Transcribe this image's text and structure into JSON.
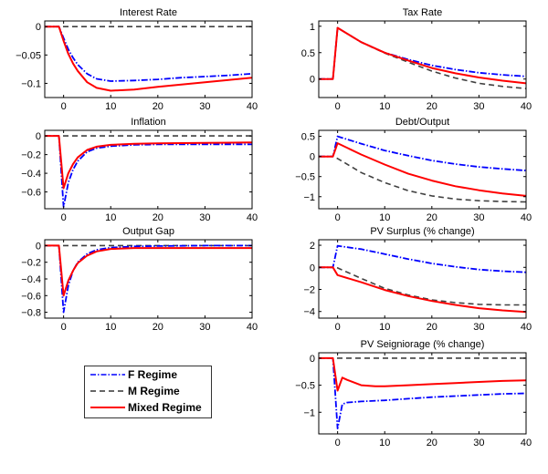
{
  "legend": [
    {
      "name": "F Regime",
      "color": "#0000ff",
      "style": "dashdot"
    },
    {
      "name": "M Regime",
      "color": "#333333",
      "style": "dashed"
    },
    {
      "name": "Mixed Regime",
      "color": "#ff0000",
      "style": "solid"
    }
  ],
  "chart_data": [
    {
      "type": "line",
      "title": "Interest Rate",
      "xlim": [
        -4,
        40
      ],
      "ylim": [
        -0.125,
        0.01
      ],
      "xticks": [
        0,
        10,
        20,
        30,
        40
      ],
      "yticks": [
        0,
        -0.05,
        -0.1
      ],
      "ytick_labels": [
        "0",
        "-0.05",
        "-0.1"
      ],
      "series": [
        {
          "name": "F Regime",
          "x": [
            -4,
            -1,
            0,
            1,
            2,
            3,
            5,
            7,
            10,
            15,
            20,
            25,
            30,
            35,
            40
          ],
          "y": [
            0,
            0,
            -0.02,
            -0.04,
            -0.055,
            -0.067,
            -0.083,
            -0.092,
            -0.096,
            -0.095,
            -0.093,
            -0.09,
            -0.088,
            -0.086,
            -0.083
          ]
        },
        {
          "name": "M Regime",
          "x": [
            -4,
            40
          ],
          "y": [
            0,
            0
          ]
        },
        {
          "name": "Mixed Regime",
          "x": [
            -4,
            -1,
            0,
            1,
            2,
            3,
            5,
            7,
            10,
            15,
            20,
            25,
            30,
            35,
            40
          ],
          "y": [
            0,
            0,
            -0.025,
            -0.048,
            -0.065,
            -0.078,
            -0.098,
            -0.108,
            -0.113,
            -0.111,
            -0.106,
            -0.102,
            -0.098,
            -0.094,
            -0.09
          ]
        }
      ]
    },
    {
      "type": "line",
      "title": "Tax Rate",
      "xlim": [
        -4,
        40
      ],
      "ylim": [
        -0.35,
        1.1
      ],
      "xticks": [
        0,
        10,
        20,
        30,
        40
      ],
      "yticks": [
        1,
        0.5,
        0
      ],
      "ytick_labels": [
        "1",
        "0.5",
        "0"
      ],
      "series": [
        {
          "name": "F Regime",
          "x": [
            -4,
            -1,
            0,
            5,
            10,
            15,
            20,
            25,
            30,
            35,
            40
          ],
          "y": [
            0,
            0,
            0.97,
            0.7,
            0.5,
            0.37,
            0.26,
            0.18,
            0.12,
            0.08,
            0.05
          ]
        },
        {
          "name": "M Regime",
          "x": [
            -4,
            -1,
            0,
            5,
            10,
            15,
            20,
            25,
            30,
            35,
            40
          ],
          "y": [
            0,
            0,
            0.97,
            0.7,
            0.49,
            0.32,
            0.15,
            0.02,
            -0.08,
            -0.14,
            -0.18
          ]
        },
        {
          "name": "Mixed Regime",
          "x": [
            -4,
            -1,
            0,
            5,
            10,
            15,
            20,
            25,
            30,
            35,
            40
          ],
          "y": [
            0,
            0,
            0.97,
            0.7,
            0.5,
            0.35,
            0.21,
            0.11,
            0.03,
            -0.03,
            -0.08
          ]
        }
      ]
    },
    {
      "type": "line",
      "title": "Inflation",
      "xlim": [
        -4,
        40
      ],
      "ylim": [
        -0.78,
        0.06
      ],
      "xticks": [
        0,
        10,
        20,
        30,
        40
      ],
      "yticks": [
        0,
        -0.2,
        -0.4,
        -0.6
      ],
      "ytick_labels": [
        "0",
        "-0.2",
        "-0.4",
        "-0.6"
      ],
      "series": [
        {
          "name": "F Regime",
          "x": [
            -4,
            -1,
            0,
            1,
            2,
            3,
            5,
            7,
            10,
            15,
            20,
            30,
            40
          ],
          "y": [
            0,
            0,
            -0.76,
            -0.5,
            -0.36,
            -0.27,
            -0.17,
            -0.13,
            -0.11,
            -0.095,
            -0.09,
            -0.09,
            -0.09
          ]
        },
        {
          "name": "M Regime",
          "x": [
            -4,
            40
          ],
          "y": [
            0,
            0
          ]
        },
        {
          "name": "Mixed Regime",
          "x": [
            -4,
            -1,
            0,
            1,
            2,
            3,
            5,
            7,
            10,
            15,
            20,
            30,
            40
          ],
          "y": [
            0,
            0,
            -0.56,
            -0.4,
            -0.3,
            -0.23,
            -0.15,
            -0.115,
            -0.095,
            -0.085,
            -0.08,
            -0.075,
            -0.07
          ]
        }
      ]
    },
    {
      "type": "line",
      "title": "Debt/Output",
      "xlim": [
        -4,
        40
      ],
      "ylim": [
        -1.3,
        0.65
      ],
      "xticks": [
        0,
        10,
        20,
        30,
        40
      ],
      "yticks": [
        0.5,
        0,
        -0.5,
        -1
      ],
      "ytick_labels": [
        "0.5",
        "0",
        "-0.5",
        "-1"
      ],
      "series": [
        {
          "name": "F Regime",
          "x": [
            -4,
            -1,
            0,
            5,
            10,
            15,
            20,
            25,
            30,
            35,
            40
          ],
          "y": [
            0,
            0,
            0.5,
            0.32,
            0.15,
            0.02,
            -0.1,
            -0.19,
            -0.26,
            -0.31,
            -0.35
          ]
        },
        {
          "name": "M Regime",
          "x": [
            -4,
            -1,
            0,
            5,
            10,
            15,
            20,
            25,
            30,
            35,
            40
          ],
          "y": [
            0,
            0,
            -0.05,
            -0.4,
            -0.65,
            -0.85,
            -0.98,
            -1.06,
            -1.1,
            -1.12,
            -1.13
          ]
        },
        {
          "name": "Mixed Regime",
          "x": [
            -4,
            -1,
            0,
            5,
            10,
            15,
            20,
            25,
            30,
            35,
            40
          ],
          "y": [
            0,
            0,
            0.33,
            0.05,
            -0.2,
            -0.43,
            -0.6,
            -0.74,
            -0.84,
            -0.92,
            -0.98
          ]
        }
      ]
    },
    {
      "type": "line",
      "title": "Output Gap",
      "xlim": [
        -4,
        40
      ],
      "ylim": [
        -0.87,
        0.07
      ],
      "xticks": [
        0,
        10,
        20,
        30,
        40
      ],
      "yticks": [
        0,
        -0.2,
        -0.4,
        -0.6,
        -0.8
      ],
      "ytick_labels": [
        "0",
        "-0.2",
        "-0.4",
        "-0.6",
        "-0.8"
      ],
      "series": [
        {
          "name": "F Regime",
          "x": [
            -4,
            -1,
            0,
            1,
            2,
            3,
            5,
            7,
            10,
            15,
            20,
            30,
            40
          ],
          "y": [
            0,
            0,
            -0.8,
            -0.48,
            -0.3,
            -0.2,
            -0.1,
            -0.05,
            -0.025,
            -0.01,
            -0.005,
            0,
            0
          ]
        },
        {
          "name": "M Regime",
          "x": [
            -4,
            40
          ],
          "y": [
            0,
            0
          ]
        },
        {
          "name": "Mixed Regime",
          "x": [
            -4,
            -1,
            0,
            1,
            2,
            3,
            5,
            7,
            10,
            15,
            20,
            30,
            40
          ],
          "y": [
            0,
            0,
            -0.6,
            -0.42,
            -0.3,
            -0.21,
            -0.12,
            -0.07,
            -0.04,
            -0.03,
            -0.03,
            -0.03,
            -0.03
          ]
        }
      ]
    },
    {
      "type": "line",
      "title": "PV Surplus (% change)",
      "xlim": [
        -4,
        40
      ],
      "ylim": [
        -4.6,
        2.5
      ],
      "xticks": [
        0,
        10,
        20,
        30,
        40
      ],
      "yticks": [
        2,
        0,
        -2,
        -4
      ],
      "ytick_labels": [
        "2",
        "0",
        "-2",
        "-4"
      ],
      "series": [
        {
          "name": "F Regime",
          "x": [
            -4,
            -1,
            0,
            5,
            10,
            15,
            20,
            25,
            30,
            35,
            40
          ],
          "y": [
            0,
            0,
            1.95,
            1.65,
            1.2,
            0.75,
            0.35,
            0.05,
            -0.2,
            -0.35,
            -0.45
          ]
        },
        {
          "name": "M Regime",
          "x": [
            -4,
            -1,
            0,
            5,
            10,
            15,
            20,
            25,
            30,
            35,
            40
          ],
          "y": [
            0,
            0,
            -0.05,
            -1.0,
            -1.9,
            -2.5,
            -2.95,
            -3.2,
            -3.35,
            -3.4,
            -3.4
          ]
        },
        {
          "name": "Mixed Regime",
          "x": [
            -4,
            -1,
            0,
            5,
            10,
            15,
            20,
            25,
            30,
            35,
            40
          ],
          "y": [
            0,
            0,
            -0.7,
            -1.35,
            -2.05,
            -2.6,
            -3.05,
            -3.4,
            -3.7,
            -3.9,
            -4.05
          ]
        }
      ]
    },
    {
      "type": "line",
      "title": "PV Seigniorage (% change)",
      "xlim": [
        -4,
        40
      ],
      "ylim": [
        -1.4,
        0.1
      ],
      "xticks": [
        0,
        10,
        20,
        30,
        40
      ],
      "yticks": [
        0,
        -0.5,
        -1
      ],
      "ytick_labels": [
        "0",
        "-0.5",
        "-1"
      ],
      "series": [
        {
          "name": "F Regime",
          "x": [
            -4,
            -1,
            0,
            1,
            2,
            5,
            10,
            15,
            20,
            25,
            30,
            35,
            40
          ],
          "y": [
            0,
            0,
            -1.3,
            -0.85,
            -0.82,
            -0.8,
            -0.78,
            -0.75,
            -0.72,
            -0.7,
            -0.68,
            -0.66,
            -0.65
          ]
        },
        {
          "name": "M Regime",
          "x": [
            -4,
            40
          ],
          "y": [
            0,
            0
          ]
        },
        {
          "name": "Mixed Regime",
          "x": [
            -4,
            -1,
            0,
            1,
            2,
            5,
            8,
            10,
            15,
            20,
            25,
            30,
            35,
            40
          ],
          "y": [
            0,
            0,
            -0.6,
            -0.36,
            -0.4,
            -0.5,
            -0.52,
            -0.52,
            -0.5,
            -0.48,
            -0.46,
            -0.44,
            -0.42,
            -0.41
          ]
        }
      ]
    }
  ]
}
